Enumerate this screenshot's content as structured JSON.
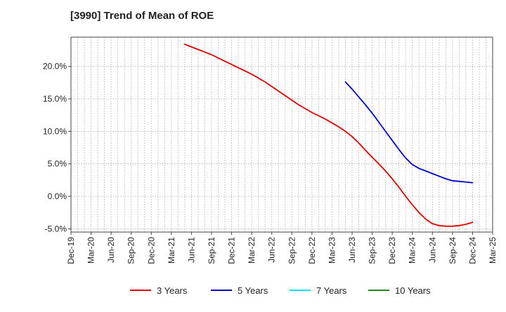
{
  "chart_data": {
    "type": "line",
    "title": "[3990]  Trend of Mean of ROE",
    "xlabel": "",
    "ylabel": "",
    "categories": [
      "Dec-19",
      "Mar-20",
      "Jun-20",
      "Sep-20",
      "Dec-20",
      "Mar-21",
      "Jun-21",
      "Sep-21",
      "Dec-21",
      "Mar-22",
      "Jun-22",
      "Sep-22",
      "Dec-22",
      "Mar-23",
      "Jun-23",
      "Sep-23",
      "Dec-23",
      "Mar-24",
      "Jun-24",
      "Sep-24",
      "Dec-24",
      "Mar-25"
    ],
    "ylim": [
      -5.5,
      24.5
    ],
    "y_ticks": [
      -5,
      0,
      5,
      10,
      15,
      20
    ],
    "y_tick_labels": [
      "-5.0%",
      "0.0%",
      "5.0%",
      "10.0%",
      "15.0%",
      "20.0%"
    ],
    "grid": true,
    "legend_position": "bottom",
    "series": [
      {
        "name": "3 Years",
        "color": "#dd0000",
        "x": [
          "May-21",
          "Jun-21",
          "Jul-21",
          "Aug-21",
          "Sep-21",
          "Oct-21",
          "Nov-21",
          "Dec-21",
          "Jan-22",
          "Feb-22",
          "Mar-22",
          "Apr-22",
          "May-22",
          "Jun-22",
          "Jul-22",
          "Aug-22",
          "Sep-22",
          "Oct-22",
          "Nov-22",
          "Dec-22",
          "Jan-23",
          "Feb-23",
          "Mar-23",
          "Apr-23",
          "May-23",
          "Jun-23",
          "Jul-23",
          "Aug-23",
          "Sep-23",
          "Oct-23",
          "Nov-23",
          "Dec-23",
          "Jan-24",
          "Feb-24",
          "Mar-24",
          "Apr-24",
          "May-24",
          "Jun-24",
          "Jul-24",
          "Aug-24",
          "Sep-24",
          "Oct-24",
          "Nov-24",
          "Dec-24"
        ],
        "values": [
          23.4,
          23.0,
          22.6,
          22.2,
          21.8,
          21.3,
          20.8,
          20.3,
          19.8,
          19.3,
          18.8,
          18.2,
          17.6,
          16.9,
          16.2,
          15.5,
          14.8,
          14.1,
          13.5,
          12.9,
          12.4,
          11.9,
          11.3,
          10.7,
          10.0,
          9.2,
          8.2,
          7.1,
          6.0,
          5.0,
          3.9,
          2.7,
          1.4,
          0.0,
          -1.3,
          -2.5,
          -3.5,
          -4.2,
          -4.5,
          -4.6,
          -4.6,
          -4.5,
          -4.3,
          -4.0
        ]
      },
      {
        "name": "5 Years",
        "color": "#0000cc",
        "x": [
          "May-23",
          "Jun-23",
          "Jul-23",
          "Aug-23",
          "Sep-23",
          "Oct-23",
          "Nov-23",
          "Dec-23",
          "Jan-24",
          "Feb-24",
          "Mar-24",
          "Apr-24",
          "May-24",
          "Jun-24",
          "Jul-24",
          "Aug-24",
          "Sep-24",
          "Oct-24",
          "Nov-24",
          "Dec-24"
        ],
        "values": [
          17.6,
          16.5,
          15.3,
          14.1,
          12.8,
          11.4,
          10.0,
          8.6,
          7.2,
          5.9,
          4.9,
          4.3,
          3.9,
          3.5,
          3.1,
          2.7,
          2.4,
          2.3,
          2.2,
          2.1
        ]
      },
      {
        "name": "7 Years",
        "color": "#00e5ee",
        "x": [],
        "values": []
      },
      {
        "name": "10 Years",
        "color": "#228822",
        "x": [],
        "values": []
      }
    ]
  }
}
